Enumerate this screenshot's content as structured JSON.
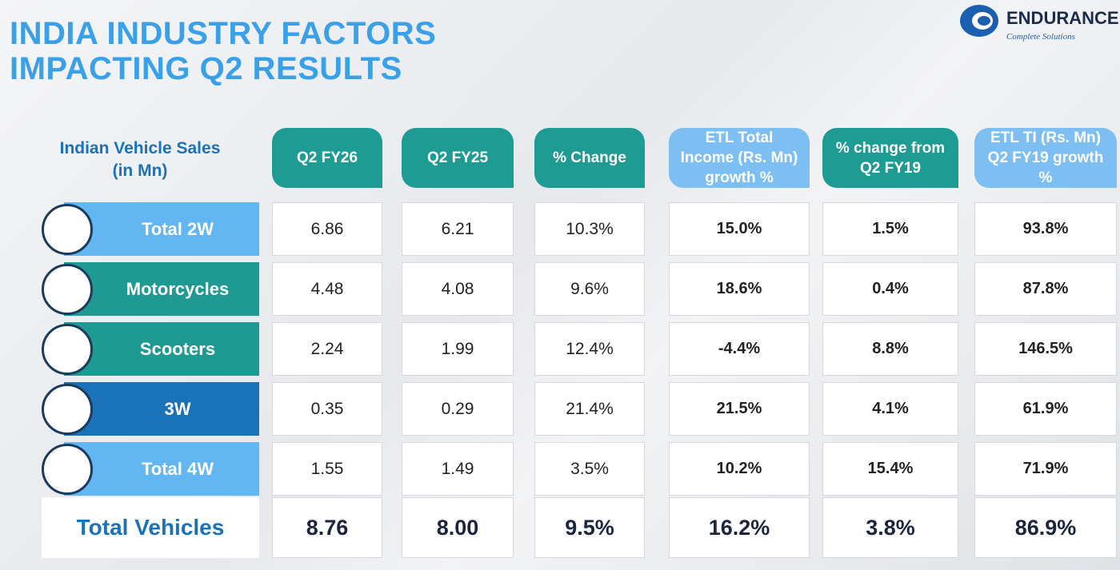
{
  "header": {
    "title_lines": [
      "INDIA INDUSTRY FACTORS",
      "IMPACTING Q2 RESULTS"
    ],
    "logo": {
      "name": "ENDURANCE",
      "tagline": "Complete Solutions"
    }
  },
  "table": {
    "corner": "Indian Vehicle Sales (in Mn)",
    "columns": [
      "Q2 FY26",
      "Q2 FY25",
      "% Change",
      "ETL Total Income (Rs. Mn) growth %",
      "% change from Q2 FY19",
      "ETL TI (Rs. Mn) Q2 FY19 growth %"
    ],
    "rows": [
      {
        "label": "Total 2W",
        "cells": [
          "6.86",
          "6.21",
          "10.3%",
          "15.0%",
          "1.5%",
          "93.8%"
        ]
      },
      {
        "label": "Motorcycles",
        "cells": [
          "4.48",
          "4.08",
          "9.6%",
          "18.6%",
          "0.4%",
          "87.8%"
        ]
      },
      {
        "label": "Scooters",
        "cells": [
          "2.24",
          "1.99",
          "12.4%",
          "-4.4%",
          "8.8%",
          "146.5%"
        ]
      },
      {
        "label": "3W",
        "cells": [
          "0.35",
          "0.29",
          "21.4%",
          "21.5%",
          "4.1%",
          "61.9%"
        ]
      },
      {
        "label": "Total 4W",
        "cells": [
          "1.55",
          "1.49",
          "3.5%",
          "10.2%",
          "15.4%",
          "71.9%"
        ]
      }
    ],
    "total": {
      "label": "Total Vehicles",
      "cells": [
        "8.76",
        "8.00",
        "9.5%",
        "16.2%",
        "3.8%",
        "86.9%"
      ]
    }
  }
}
